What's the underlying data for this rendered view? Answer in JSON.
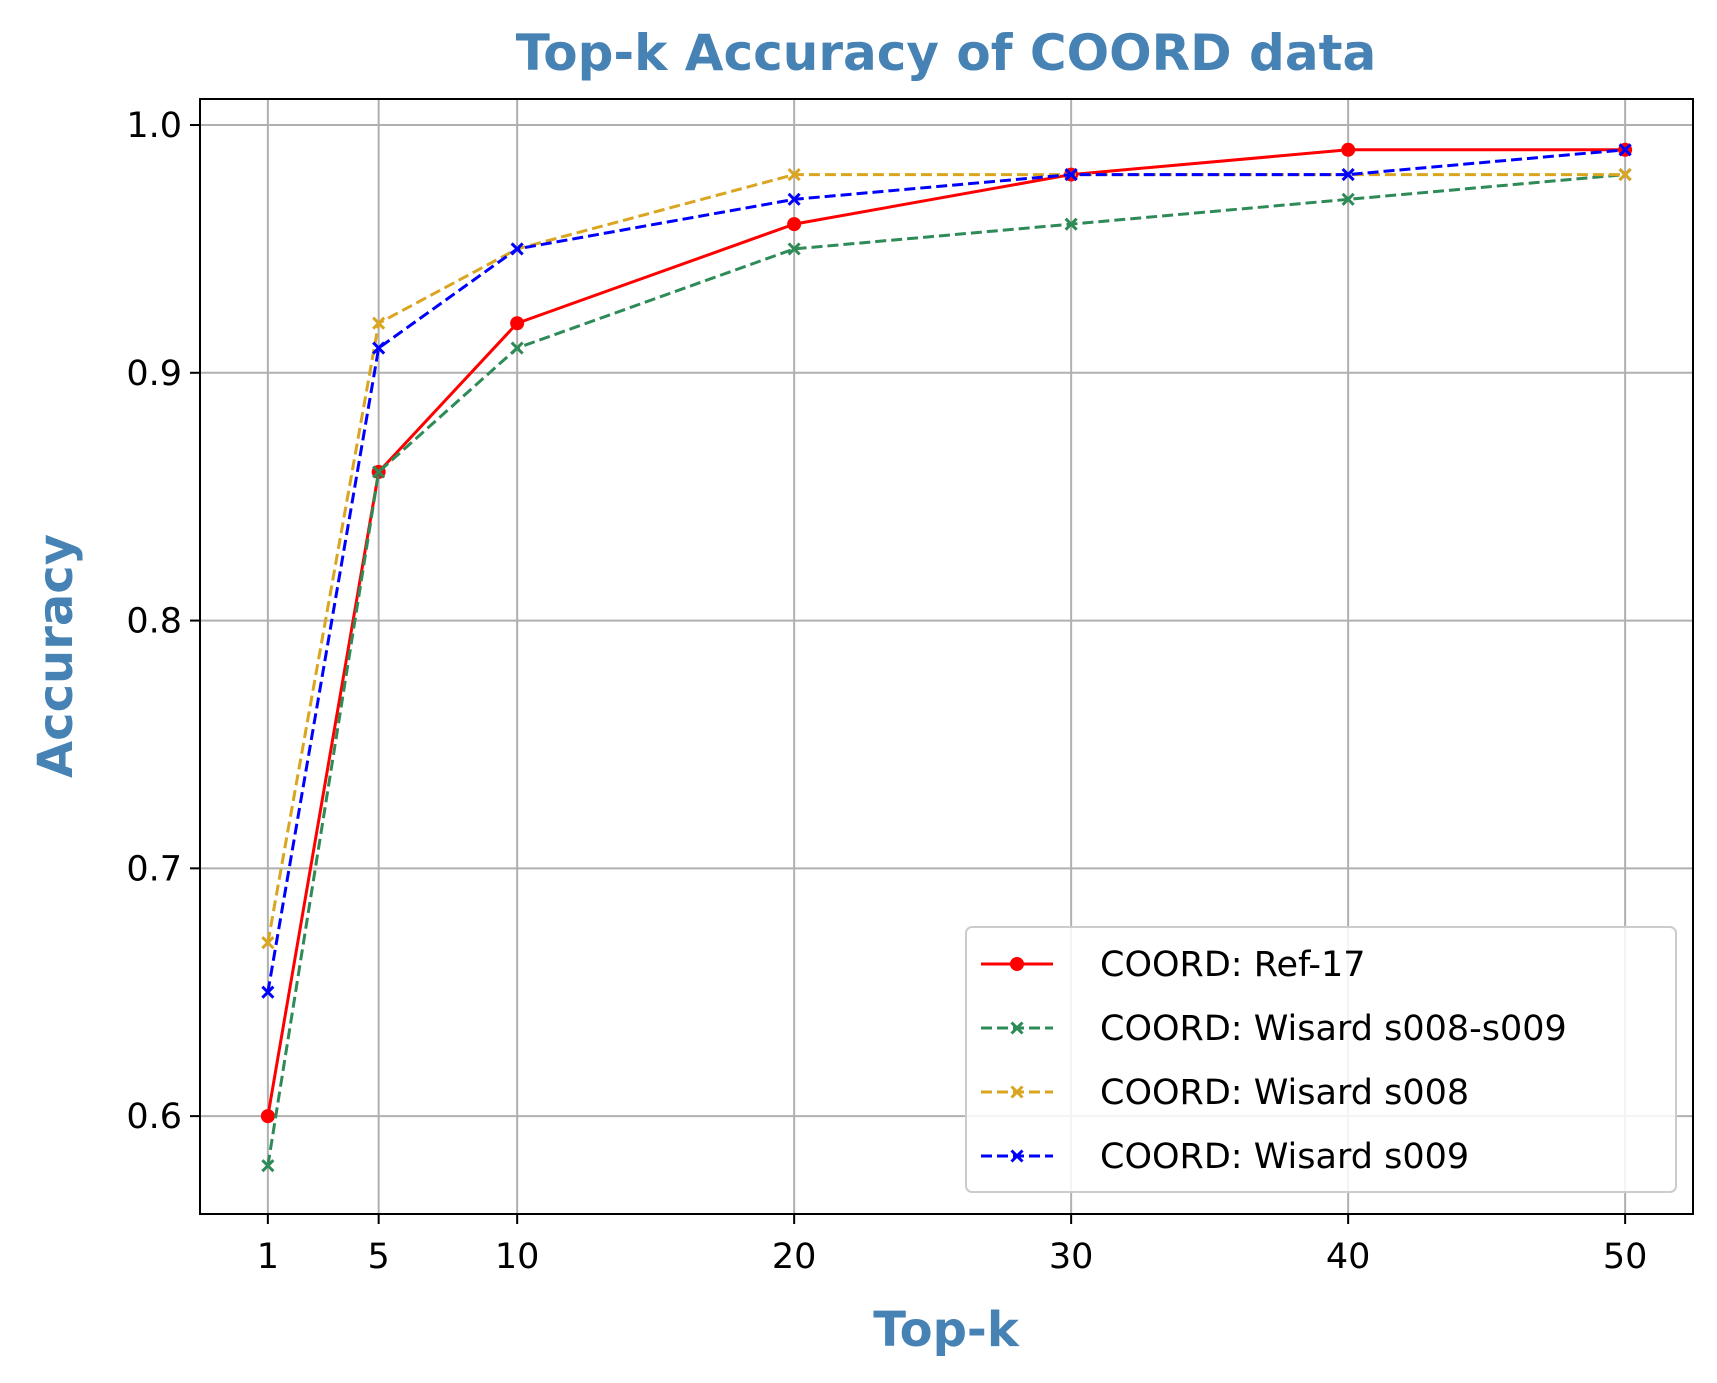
{
  "chart_data": {
    "type": "line",
    "title": "Top-k Accuracy of COORD data",
    "xlabel": "Top-k",
    "ylabel": "Accuracy",
    "x": [
      1,
      5,
      10,
      20,
      30,
      40,
      50
    ],
    "xticks": [
      1,
      5,
      10,
      20,
      30,
      40,
      50
    ],
    "xtick_labels": [
      "1",
      "5",
      "10",
      "20",
      "30",
      "40",
      "50"
    ],
    "yticks": [
      0.6,
      0.7,
      0.8,
      0.9,
      1.0
    ],
    "ytick_labels": [
      "0.6",
      "0.7",
      "0.8",
      "0.9",
      "1.0"
    ],
    "xlim": [
      -1.45,
      52.45
    ],
    "ylim": [
      0.5605,
      1.0105
    ],
    "grid": true,
    "legend_position": "lower-right",
    "series": [
      {
        "name": "COORD: Ref-17",
        "values": [
          0.6,
          0.86,
          0.92,
          0.96,
          0.98,
          0.99,
          0.99
        ],
        "color": "#ff0000",
        "linestyle": "solid",
        "marker": "dot"
      },
      {
        "name": "COORD: Wisard s008-s009",
        "values": [
          0.58,
          0.86,
          0.91,
          0.95,
          0.96,
          0.97,
          0.98
        ],
        "color": "#2e8b57",
        "linestyle": "dashed",
        "marker": "x"
      },
      {
        "name": "COORD: Wisard s008",
        "values": [
          0.67,
          0.92,
          0.95,
          0.98,
          0.98,
          0.98,
          0.98
        ],
        "color": "#daa520",
        "linestyle": "dashed",
        "marker": "x"
      },
      {
        "name": "COORD: Wisard s009",
        "values": [
          0.65,
          0.91,
          0.95,
          0.97,
          0.98,
          0.98,
          0.99
        ],
        "color": "#0000ff",
        "linestyle": "dashed",
        "marker": "x"
      }
    ]
  }
}
